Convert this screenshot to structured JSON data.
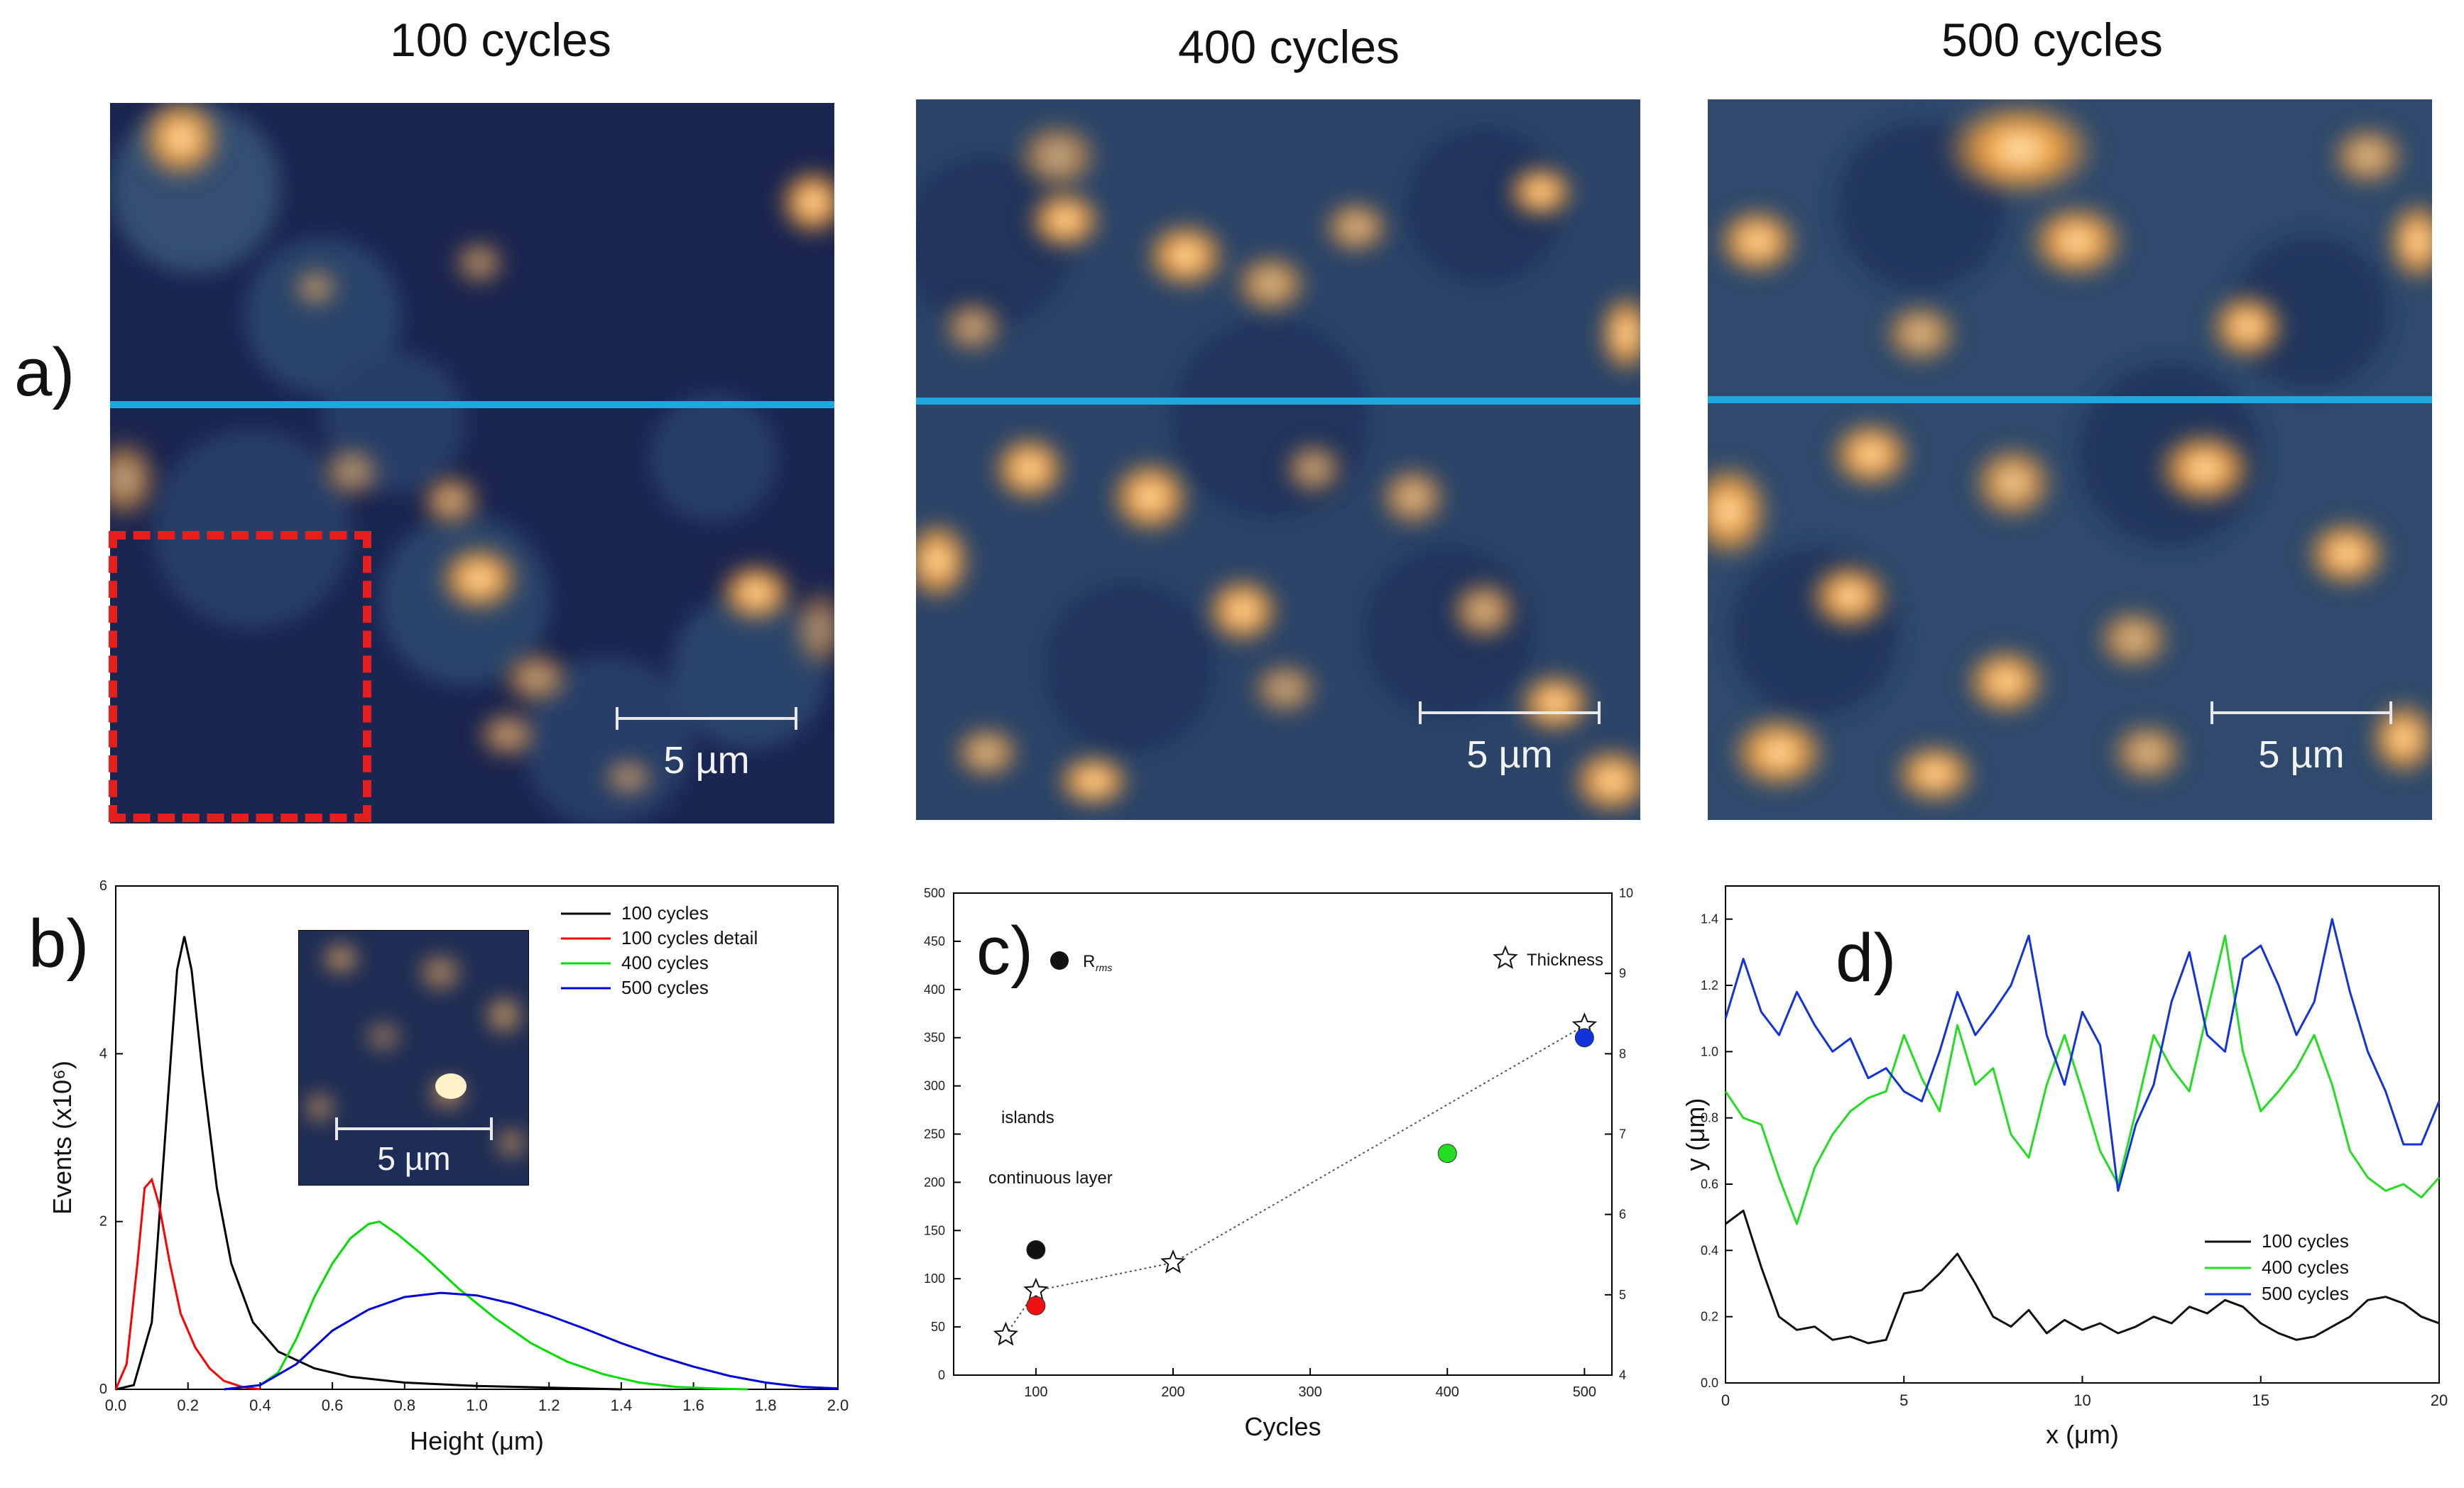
{
  "titles": [
    "100 cycles",
    "400 cycles",
    "500 cycles"
  ],
  "panel_labels": {
    "a": "a)",
    "b": "b)",
    "c": "c)",
    "d": "d)"
  },
  "scale_bar_label": "5 µm",
  "colors": {
    "cut_line": "#1fa8e0",
    "detail_box": "#e61e1e",
    "afm_low": "#1a2a55",
    "afm_high": "#f5a13c"
  },
  "chart_data": [
    {
      "panel": "b",
      "type": "line",
      "xlabel": "Height (μm)",
      "ylabel": "Events (x10⁶)",
      "xlim": [
        0.0,
        2.0
      ],
      "ylim": [
        0,
        6
      ],
      "xticks": [
        "0.0",
        "0.2",
        "0.4",
        "0.6",
        "0.8",
        "1.0",
        "1.2",
        "1.4",
        "1.6",
        "1.8",
        "2.0"
      ],
      "yticks": [
        "0",
        "2",
        "4",
        "6"
      ],
      "inset_scale_label": "5 µm",
      "series": [
        {
          "name": "100 cycles",
          "color": "#000000",
          "x": [
            0.0,
            0.05,
            0.1,
            0.14,
            0.17,
            0.19,
            0.21,
            0.24,
            0.28,
            0.32,
            0.38,
            0.45,
            0.55,
            0.65,
            0.8,
            1.0,
            1.2,
            1.4
          ],
          "y": [
            0,
            0.05,
            0.8,
            3.2,
            5.0,
            5.4,
            5.0,
            3.8,
            2.4,
            1.5,
            0.8,
            0.45,
            0.25,
            0.15,
            0.08,
            0.04,
            0.02,
            0
          ]
        },
        {
          "name": "100 cycles detail",
          "color": "#ff0000",
          "x": [
            0.0,
            0.03,
            0.06,
            0.08,
            0.1,
            0.12,
            0.15,
            0.18,
            0.22,
            0.26,
            0.3,
            0.35,
            0.4
          ],
          "y": [
            0,
            0.3,
            1.5,
            2.4,
            2.5,
            2.2,
            1.5,
            0.9,
            0.5,
            0.25,
            0.1,
            0.03,
            0
          ]
        },
        {
          "name": "400 cycles",
          "color": "#00dd00",
          "x": [
            0.3,
            0.4,
            0.45,
            0.5,
            0.55,
            0.6,
            0.65,
            0.7,
            0.73,
            0.78,
            0.85,
            0.95,
            1.05,
            1.15,
            1.25,
            1.35,
            1.45,
            1.55,
            1.65,
            1.75
          ],
          "y": [
            0,
            0.05,
            0.2,
            0.6,
            1.1,
            1.5,
            1.8,
            1.97,
            2.0,
            1.85,
            1.6,
            1.2,
            0.85,
            0.55,
            0.33,
            0.18,
            0.08,
            0.03,
            0.01,
            0
          ]
        },
        {
          "name": "500 cycles",
          "color": "#0000dd",
          "x": [
            0.3,
            0.4,
            0.5,
            0.6,
            0.7,
            0.8,
            0.9,
            1.0,
            1.1,
            1.2,
            1.3,
            1.4,
            1.5,
            1.6,
            1.7,
            1.8,
            1.9,
            2.0
          ],
          "y": [
            0,
            0.05,
            0.3,
            0.7,
            0.95,
            1.1,
            1.15,
            1.12,
            1.02,
            0.88,
            0.72,
            0.55,
            0.4,
            0.27,
            0.16,
            0.08,
            0.03,
            0.01
          ]
        }
      ]
    },
    {
      "panel": "c",
      "type": "scatter",
      "xlabel": "Cycles",
      "xlim": [
        40,
        520
      ],
      "ylim_left": [
        0,
        500
      ],
      "ylim_right": [
        4,
        10
      ],
      "xticks": [
        "100",
        "200",
        "300",
        "400",
        "500"
      ],
      "yticks_left": [
        "0",
        "50",
        "100",
        "150",
        "200",
        "250",
        "300",
        "350",
        "400",
        "450",
        "500"
      ],
      "yticks_right": [
        "4",
        "5",
        "6",
        "7",
        "8",
        "9",
        "10"
      ],
      "legend_rms": "R",
      "legend_rms_sub": "rms",
      "legend_thickness": "Thickness",
      "annotation_islands": "islands",
      "annotation_continuous": "continuous layer",
      "rms_points": [
        {
          "x": 100,
          "y": 130,
          "color": "#111111"
        },
        {
          "x": 100,
          "y": 72,
          "color": "#ee1111"
        },
        {
          "x": 400,
          "y": 230,
          "color": "#22dd22"
        },
        {
          "x": 500,
          "y": 350,
          "color": "#1133dd"
        }
      ],
      "thickness_points": [
        {
          "x": 78,
          "y": 4.5
        },
        {
          "x": 100,
          "y": 5.05
        },
        {
          "x": 200,
          "y": 5.4
        },
        {
          "x": 500,
          "y": 8.35
        }
      ]
    },
    {
      "panel": "d",
      "type": "line",
      "xlabel": "x (μm)",
      "ylabel": "y (μm)",
      "xlim": [
        0,
        20
      ],
      "ylim": [
        0.0,
        1.5
      ],
      "xticks": [
        "0",
        "5",
        "10",
        "15",
        "20"
      ],
      "yticks": [
        "0.0",
        "0.2",
        "0.4",
        "0.6",
        "0.8",
        "1.0",
        "1.2",
        "1.4"
      ],
      "series": [
        {
          "name": "100 cycles",
          "color": "#111111",
          "x": [
            0,
            0.5,
            1,
            1.5,
            2,
            2.5,
            3,
            3.5,
            4,
            4.5,
            5,
            5.5,
            6,
            6.5,
            7,
            7.5,
            8,
            8.5,
            9,
            9.5,
            10,
            10.5,
            11,
            11.5,
            12,
            12.5,
            13,
            13.5,
            14,
            14.5,
            15,
            15.5,
            16,
            16.5,
            17,
            17.5,
            18,
            18.5,
            19,
            19.5,
            20
          ],
          "y": [
            0.48,
            0.52,
            0.35,
            0.2,
            0.16,
            0.17,
            0.13,
            0.14,
            0.12,
            0.13,
            0.27,
            0.28,
            0.33,
            0.39,
            0.3,
            0.2,
            0.17,
            0.22,
            0.15,
            0.19,
            0.16,
            0.18,
            0.15,
            0.17,
            0.2,
            0.18,
            0.23,
            0.21,
            0.25,
            0.23,
            0.18,
            0.15,
            0.13,
            0.14,
            0.17,
            0.2,
            0.25,
            0.26,
            0.24,
            0.2,
            0.18
          ]
        },
        {
          "name": "400 cycles",
          "color": "#22dd22",
          "x": [
            0,
            0.5,
            1,
            1.5,
            2,
            2.5,
            3,
            3.5,
            4,
            4.5,
            5,
            5.5,
            6,
            6.5,
            7,
            7.5,
            8,
            8.5,
            9,
            9.5,
            10,
            10.5,
            11,
            11.5,
            12,
            12.5,
            13,
            13.5,
            14,
            14.5,
            15,
            15.5,
            16,
            16.5,
            17,
            17.5,
            18,
            18.5,
            19,
            19.5,
            20
          ],
          "y": [
            0.88,
            0.8,
            0.78,
            0.62,
            0.48,
            0.65,
            0.75,
            0.82,
            0.86,
            0.88,
            1.05,
            0.92,
            0.82,
            1.08,
            0.9,
            0.95,
            0.75,
            0.68,
            0.9,
            1.05,
            0.88,
            0.7,
            0.6,
            0.82,
            1.05,
            0.95,
            0.88,
            1.12,
            1.35,
            1.0,
            0.82,
            0.88,
            0.95,
            1.05,
            0.9,
            0.7,
            0.62,
            0.58,
            0.6,
            0.56,
            0.62
          ]
        },
        {
          "name": "500 cycles",
          "color": "#1133dd",
          "x": [
            0,
            0.5,
            1,
            1.5,
            2,
            2.5,
            3,
            3.5,
            4,
            4.5,
            5,
            5.5,
            6,
            6.5,
            7,
            7.5,
            8,
            8.5,
            9,
            9.5,
            10,
            10.5,
            11,
            11.5,
            12,
            12.5,
            13,
            13.5,
            14,
            14.5,
            15,
            15.5,
            16,
            16.5,
            17,
            17.5,
            18,
            18.5,
            19,
            19.5,
            20
          ],
          "y": [
            1.1,
            1.28,
            1.12,
            1.05,
            1.18,
            1.08,
            1.0,
            1.04,
            0.92,
            0.95,
            0.88,
            0.85,
            1.0,
            1.18,
            1.05,
            1.12,
            1.2,
            1.35,
            1.05,
            0.9,
            1.12,
            1.02,
            0.58,
            0.78,
            0.9,
            1.15,
            1.3,
            1.05,
            1.0,
            1.28,
            1.32,
            1.2,
            1.05,
            1.15,
            1.4,
            1.18,
            1.0,
            0.88,
            0.72,
            0.72,
            0.85
          ]
        }
      ]
    }
  ]
}
